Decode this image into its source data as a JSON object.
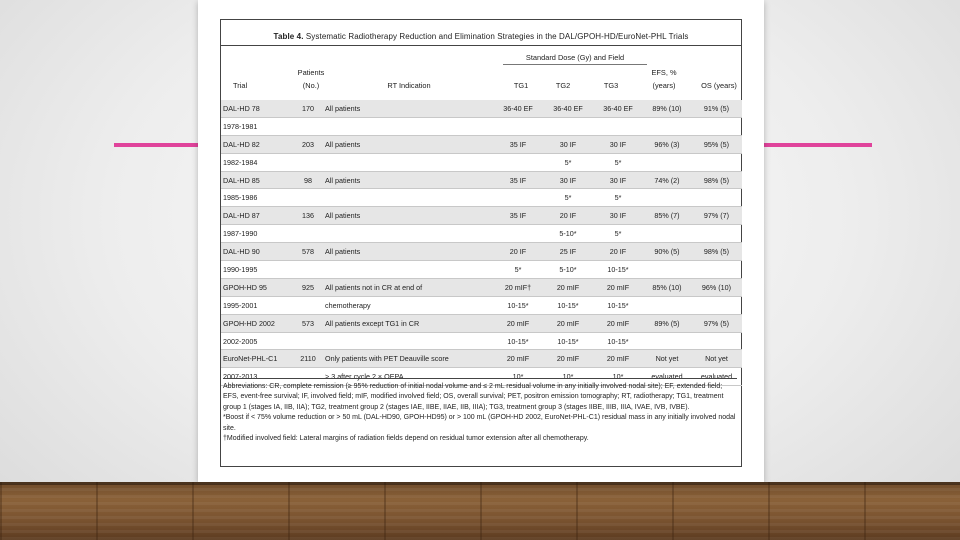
{
  "table": {
    "caption_bold": "Table 4.",
    "caption_rest": "Systematic Radiotherapy Reduction and Elimination Strategies in the DAL/GPOH-HD/EuroNet-PHL Trials",
    "group_header": "Standard Dose (Gy) and Field",
    "columns": {
      "trial": "Trial",
      "patients_l1": "Patients",
      "patients_l2": "(No.)",
      "indication": "RT Indication",
      "tg1": "TG1",
      "tg2": "TG2",
      "tg3": "TG3",
      "efs_l1": "EFS, %",
      "efs_l2": "(years)",
      "os": "OS (years)"
    },
    "rows": [
      {
        "trial": "DAL-HD 78",
        "patients": "170",
        "indication": "All patients",
        "tg1": "36-40 EF",
        "tg2": "36-40 EF",
        "tg3": "36-40 EF",
        "efs": "89% (10)",
        "os": "91% (5)",
        "shade": true
      },
      {
        "trial": "1978-1981",
        "patients": "",
        "indication": "",
        "tg1": "",
        "tg2": "",
        "tg3": "",
        "efs": "",
        "os": "",
        "shade": false
      },
      {
        "trial": "DAL-HD 82",
        "patients": "203",
        "indication": "All patients",
        "tg1": "35 IF",
        "tg2": "30 IF",
        "tg3": "30 IF",
        "efs": "96% (3)",
        "os": "95% (5)",
        "shade": true
      },
      {
        "trial": "1982-1984",
        "patients": "",
        "indication": "",
        "tg1": "",
        "tg2": "5*",
        "tg3": "5*",
        "efs": "",
        "os": "",
        "shade": false
      },
      {
        "trial": "DAL-HD 85",
        "patients": "98",
        "indication": "All patients",
        "tg1": "35 IF",
        "tg2": "30 IF",
        "tg3": "30 IF",
        "efs": "74% (2)",
        "os": "98% (5)",
        "shade": true
      },
      {
        "trial": "1985-1986",
        "patients": "",
        "indication": "",
        "tg1": "",
        "tg2": "5*",
        "tg3": "5*",
        "efs": "",
        "os": "",
        "shade": false
      },
      {
        "trial": "DAL-HD 87",
        "patients": "136",
        "indication": "All patients",
        "tg1": "35 IF",
        "tg2": "20 IF",
        "tg3": "30 IF",
        "efs": "85% (7)",
        "os": "97% (7)",
        "shade": true
      },
      {
        "trial": "1987-1990",
        "patients": "",
        "indication": "",
        "tg1": "",
        "tg2": "5-10*",
        "tg3": "5*",
        "efs": "",
        "os": "",
        "shade": false
      },
      {
        "trial": "DAL-HD 90",
        "patients": "578",
        "indication": "All patients",
        "tg1": "20 IF",
        "tg2": "25 IF",
        "tg3": "20 IF",
        "efs": "90% (5)",
        "os": "98% (5)",
        "shade": true
      },
      {
        "trial": "1990-1995",
        "patients": "",
        "indication": "",
        "tg1": "5*",
        "tg2": "5-10*",
        "tg3": "10-15*",
        "efs": "",
        "os": "",
        "shade": false
      },
      {
        "trial": "GPOH-HD 95",
        "patients": "925",
        "indication": "All patients not in CR at end of",
        "tg1": "20 mIF†",
        "tg2": "20 mIF",
        "tg3": "20 mIF",
        "efs": "85% (10)",
        "os": "96% (10)",
        "shade": true
      },
      {
        "trial": "1995-2001",
        "patients": "",
        "indication": "chemotherapy",
        "tg1": "10-15*",
        "tg2": "10-15*",
        "tg3": "10-15*",
        "efs": "",
        "os": "",
        "shade": false
      },
      {
        "trial": "GPOH-HD 2002",
        "patients": "573",
        "indication": "All patients except TG1 in CR",
        "tg1": "20 mIF",
        "tg2": "20 mIF",
        "tg3": "20 mIF",
        "efs": "89% (5)",
        "os": "97% (5)",
        "shade": true
      },
      {
        "trial": "2002-2005",
        "patients": "",
        "indication": "",
        "tg1": "10-15*",
        "tg2": "10-15*",
        "tg3": "10-15*",
        "efs": "",
        "os": "",
        "shade": false
      },
      {
        "trial": "EuroNet-PHL-C1",
        "patients": "2110",
        "indication": "Only patients with PET Deauville score",
        "tg1": "20 mIF",
        "tg2": "20 mIF",
        "tg3": "20 mIF",
        "efs": "Not yet",
        "os": "Not yet",
        "shade": true
      },
      {
        "trial": "2007-2013",
        "patients": "",
        "indication": "  > 3 after cycle 2 × OEPA",
        "tg1": "10*",
        "tg2": "10*",
        "tg3": "10*",
        "efs": "evaluated",
        "os": "evaluated",
        "shade": false
      }
    ],
    "footnotes": [
      "Abbreviations: CR, complete remission (≥ 95% reduction of initial nodal volume and ≤ 2 mL residual volume in any initially involved nodal site); EF, extended field; EFS, event-free survival; IF, involved field; mIF, modified involved field; OS, overall survival; PET, positron emission tomography; RT, radiotherapy; TG1, treatment group 1 (stages IA, IIB, IIA); TG2, treatment group 2 (stages IAE, IIBE, IIAE, IIB, IIIA); TG3, treatment group 3 (stages IIBE, IIIB, IIIA, IVAE, IVB, IVBE).",
      "*Boost if < 75% volume reduction or > 50 mL (DAL-HD90, GPOH-HD95) or > 100 mL (GPOH-HD 2002, EuroNet-PHL-C1) residual mass in any initially involved nodal site.",
      "†Modified involved field: Lateral margins of radiation fields depend on residual tumor extension after all chemotherapy."
    ]
  },
  "colors": {
    "accent": "#e0439b",
    "card": "#ffffff",
    "shade": "#e6e6e6"
  }
}
